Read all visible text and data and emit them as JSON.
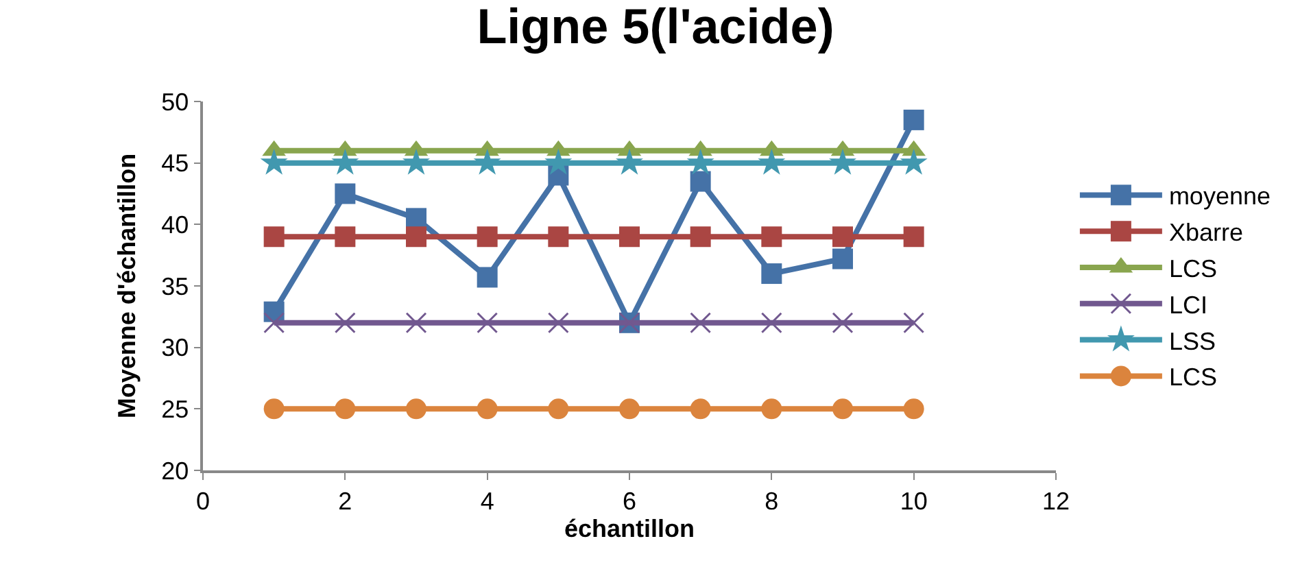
{
  "chart_data": {
    "type": "line",
    "title": "Ligne 5(l'acide)",
    "xlabel": "échantillon",
    "ylabel": "Moyenne d'échantillon",
    "x": [
      1,
      2,
      3,
      4,
      5,
      6,
      7,
      8,
      9,
      10
    ],
    "series": [
      {
        "name": "moyenne",
        "color": "#4572a7",
        "marker": "square",
        "values": [
          32.9,
          42.5,
          40.5,
          35.7,
          44,
          32,
          43.5,
          36,
          37.2,
          48.5
        ]
      },
      {
        "name": "Xbarre",
        "color": "#aa4643",
        "marker": "square",
        "values": [
          39,
          39,
          39,
          39,
          39,
          39,
          39,
          39,
          39,
          39
        ]
      },
      {
        "name": "LCS",
        "color": "#89a54e",
        "marker": "triangle",
        "values": [
          46,
          46,
          46,
          46,
          46,
          46,
          46,
          46,
          46,
          46
        ]
      },
      {
        "name": "LCI",
        "color": "#71588f",
        "marker": "cross",
        "values": [
          32,
          32,
          32,
          32,
          32,
          32,
          32,
          32,
          32,
          32
        ]
      },
      {
        "name": "LSS",
        "color": "#4198af",
        "marker": "star",
        "values": [
          45,
          45,
          45,
          45,
          45,
          45,
          45,
          45,
          45,
          45
        ]
      },
      {
        "name": "LCS",
        "color": "#db843d",
        "marker": "circle",
        "values": [
          25,
          25,
          25,
          25,
          25,
          25,
          25,
          25,
          25,
          25
        ]
      }
    ],
    "xlim": [
      0,
      12
    ],
    "xticks": [
      0,
      2,
      4,
      6,
      8,
      10,
      12
    ],
    "ylim": [
      20,
      50
    ],
    "yticks": [
      20,
      25,
      30,
      35,
      40,
      45,
      50
    ],
    "grid": false,
    "legend": "right",
    "line_style": "solid"
  }
}
